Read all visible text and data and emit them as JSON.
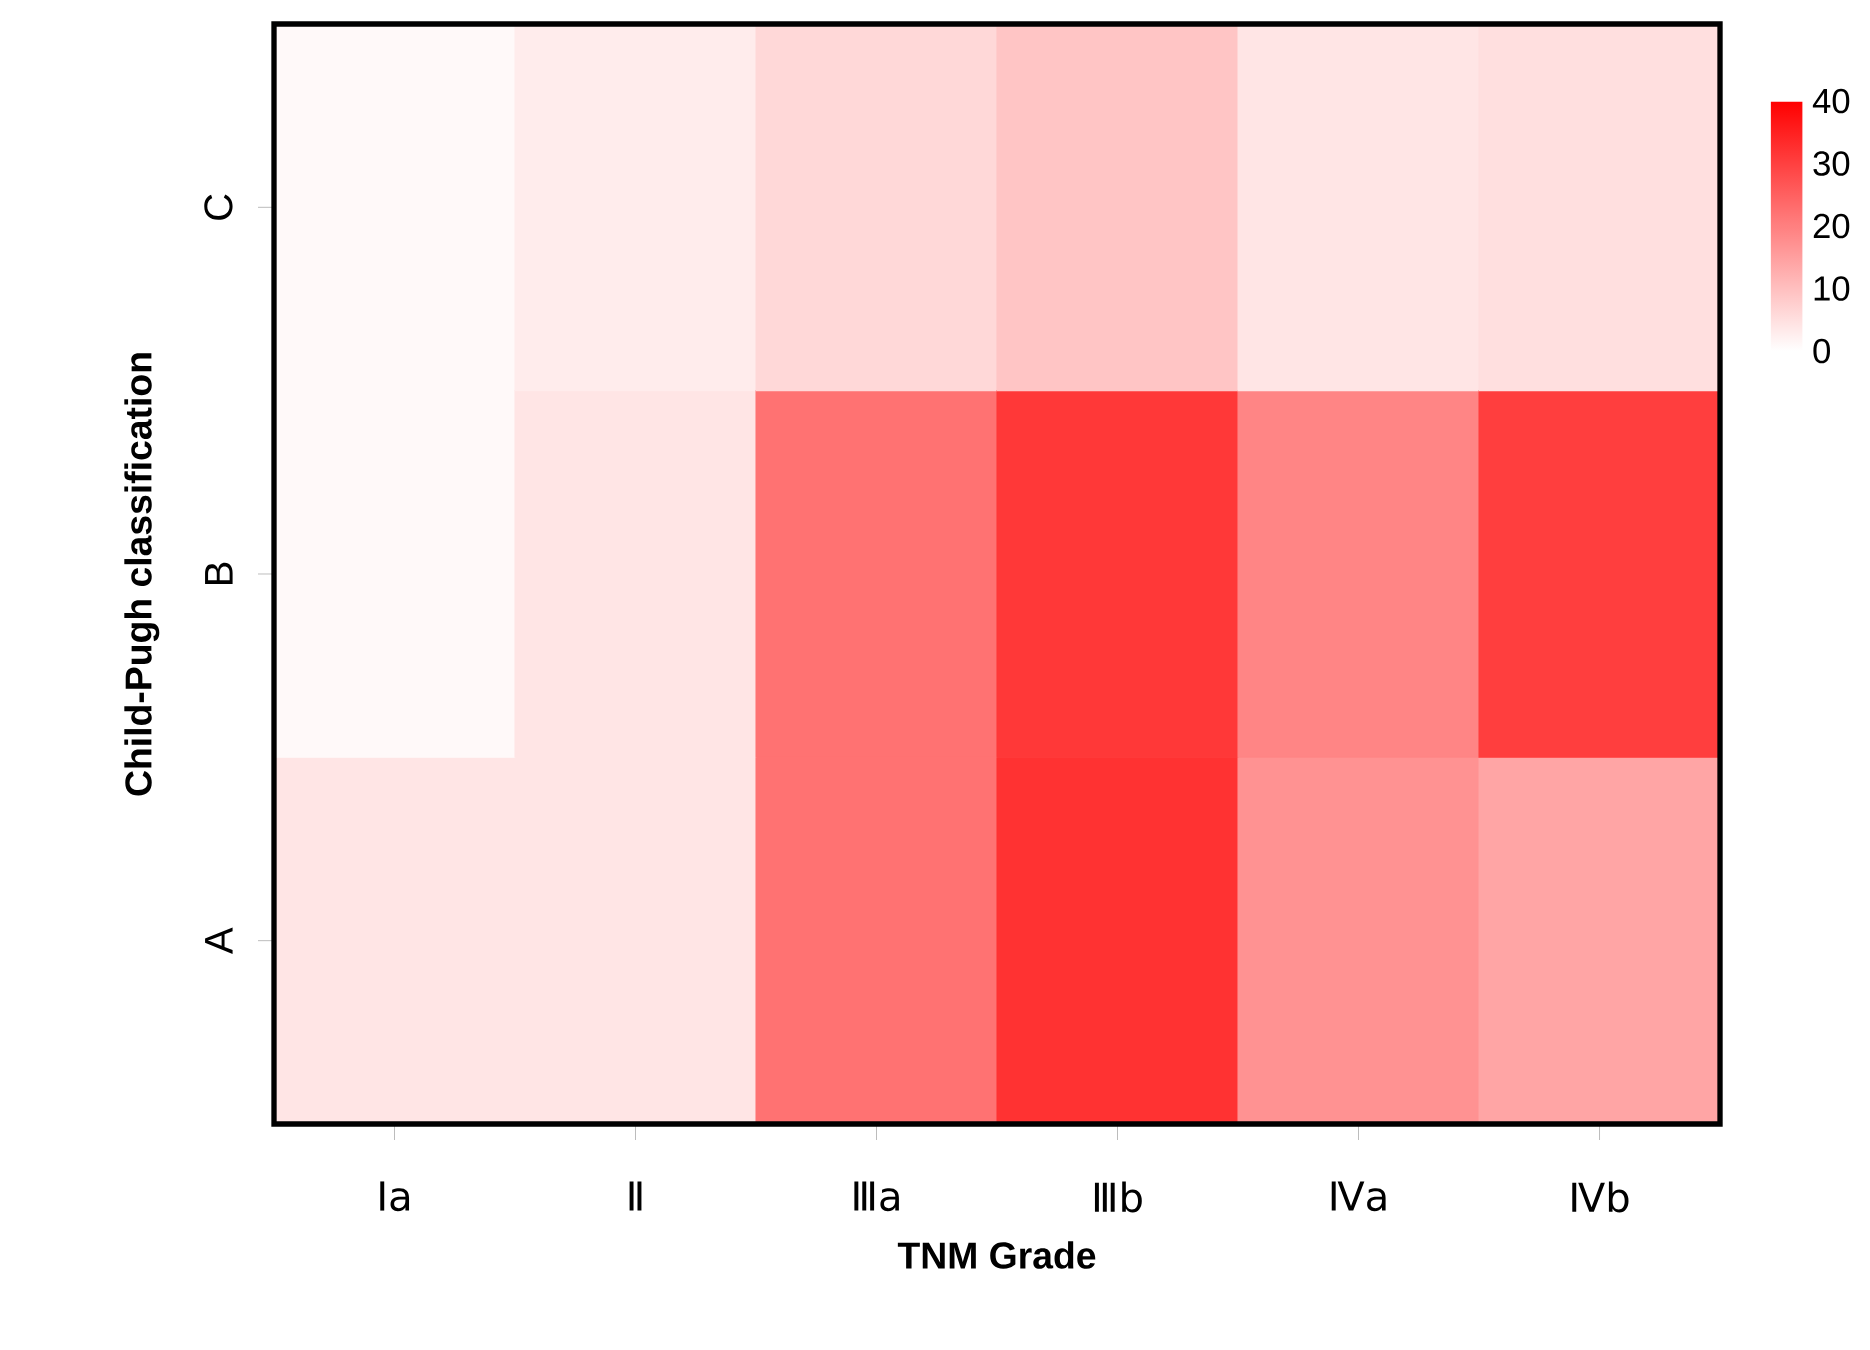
{
  "chart_data": {
    "type": "heatmap",
    "xlabel": "TNM Grade",
    "ylabel": "Child-Pugh classification",
    "categories": [
      "Ⅰa",
      "Ⅱ",
      "Ⅲa",
      "Ⅲb",
      "Ⅳa",
      "Ⅳb"
    ],
    "y_categories": [
      "C",
      "B",
      "A"
    ],
    "cells": [
      [
        1,
        3,
        6,
        9,
        4,
        5
      ],
      [
        1,
        4,
        22,
        31,
        19,
        30
      ],
      [
        4,
        4,
        22,
        32,
        17,
        14
      ]
    ],
    "clim": [
      0,
      40
    ],
    "cticks": [
      0,
      10,
      20,
      30,
      40
    ]
  }
}
